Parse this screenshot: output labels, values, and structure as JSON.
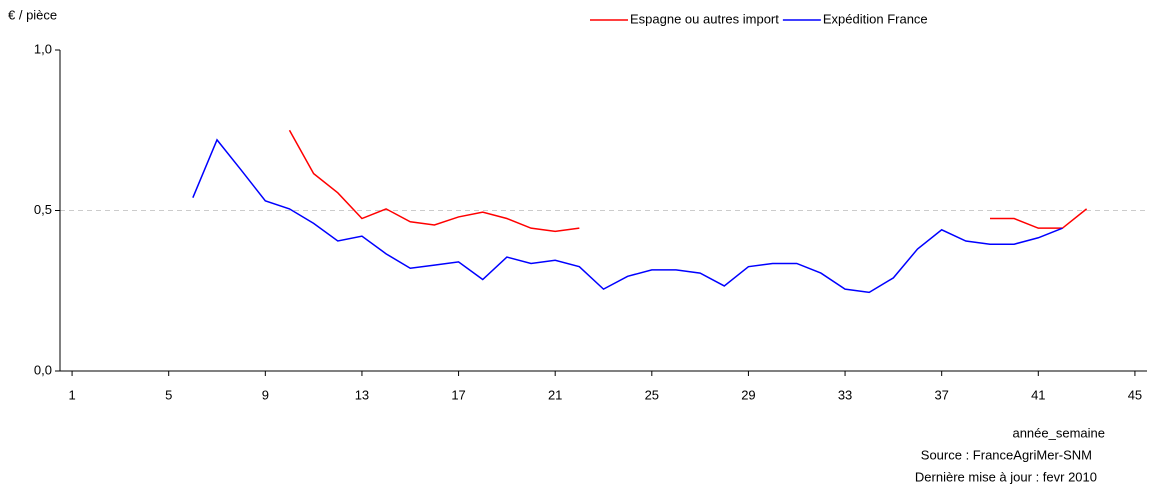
{
  "chart_data": {
    "type": "line",
    "y_label": "€ / pièce",
    "x_label": "année_semaine",
    "source": "Source : FranceAgriMer-SNM",
    "update": "Dernière mise à jour : fevr 2010",
    "x": [
      6,
      7,
      8,
      9,
      10,
      11,
      12,
      13,
      14,
      15,
      16,
      17,
      18,
      19,
      20,
      21,
      22,
      23,
      24,
      25,
      26,
      27,
      28,
      29,
      30,
      31,
      32,
      33,
      34,
      35,
      36,
      37,
      38,
      39,
      40,
      41,
      42,
      43
    ],
    "series": [
      {
        "name": "Espagne ou autres import",
        "color": "#ff0000",
        "values": [
          null,
          null,
          null,
          null,
          0.75,
          0.615,
          0.555,
          0.475,
          0.505,
          0.465,
          0.455,
          0.48,
          0.495,
          0.475,
          0.445,
          0.435,
          0.445,
          null,
          null,
          null,
          null,
          null,
          null,
          null,
          null,
          null,
          null,
          null,
          null,
          null,
          null,
          null,
          null,
          0.475,
          0.475,
          0.445,
          0.445,
          0.505
        ]
      },
      {
        "name": "Expédition France",
        "color": "#0000ff",
        "values": [
          0.54,
          0.72,
          0.626,
          0.53,
          0.505,
          0.46,
          0.405,
          0.42,
          0.365,
          0.32,
          0.33,
          0.34,
          0.285,
          0.355,
          0.335,
          0.345,
          0.325,
          0.255,
          0.295,
          0.315,
          0.315,
          0.305,
          0.265,
          0.325,
          0.335,
          0.335,
          0.305,
          0.255,
          0.245,
          0.29,
          0.38,
          0.44,
          0.405,
          0.395,
          0.395,
          0.415,
          0.445,
          null
        ]
      }
    ],
    "xlim": [
      0.5,
      45.5
    ],
    "xticks": [
      1,
      5,
      9,
      13,
      17,
      21,
      25,
      29,
      33,
      37,
      41,
      45
    ],
    "ylim": [
      0,
      1
    ],
    "yticks": [
      {
        "value": 0,
        "label": "0,0"
      },
      {
        "value": 0.5,
        "label": "0,5"
      },
      {
        "value": 1,
        "label": "1,0"
      }
    ],
    "grid": true,
    "legend": "top-right"
  }
}
